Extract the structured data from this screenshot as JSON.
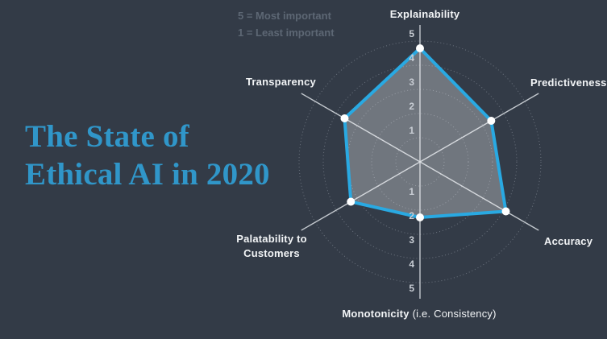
{
  "page": {
    "title_line1": "The State of",
    "title_line2": "Ethical AI in 2020"
  },
  "chart_data": {
    "type": "radar",
    "title": "The State of Ethical AI in 2020",
    "categories": [
      "Explainability",
      "Predictiveness",
      "Accuracy",
      "Monotonicity (i.e. Consistency)",
      "Palatability to Customers",
      "Transparency"
    ],
    "values": [
      4.7,
      3.4,
      4.1,
      2.3,
      3.3,
      3.6
    ],
    "scale_min": 0,
    "scale_max": 5,
    "ticks": [
      1,
      2,
      3,
      4,
      5
    ],
    "legend": [
      "5 = Most important",
      "1 = Least important"
    ],
    "grid": "dotted concentric circles, ticks shown on vertical axis in both directions",
    "monotonicity_label_bold": "Monotonicity",
    "monotonicity_label_rest": "(i.e. Consistency)",
    "colors": {
      "background": "#333b47",
      "title_accent": "#3096c9",
      "polygon_stroke": "#29a9e2",
      "polygon_fill": "rgba(255,255,255,0.30)",
      "vertex_dot": "#ffffff",
      "axis_label": "#f2f4f6",
      "tick_label": "#c8cdd4",
      "legend_text": "#5d6774",
      "spoke": "#d3d8dd",
      "gridline": "#99a1ab"
    }
  }
}
